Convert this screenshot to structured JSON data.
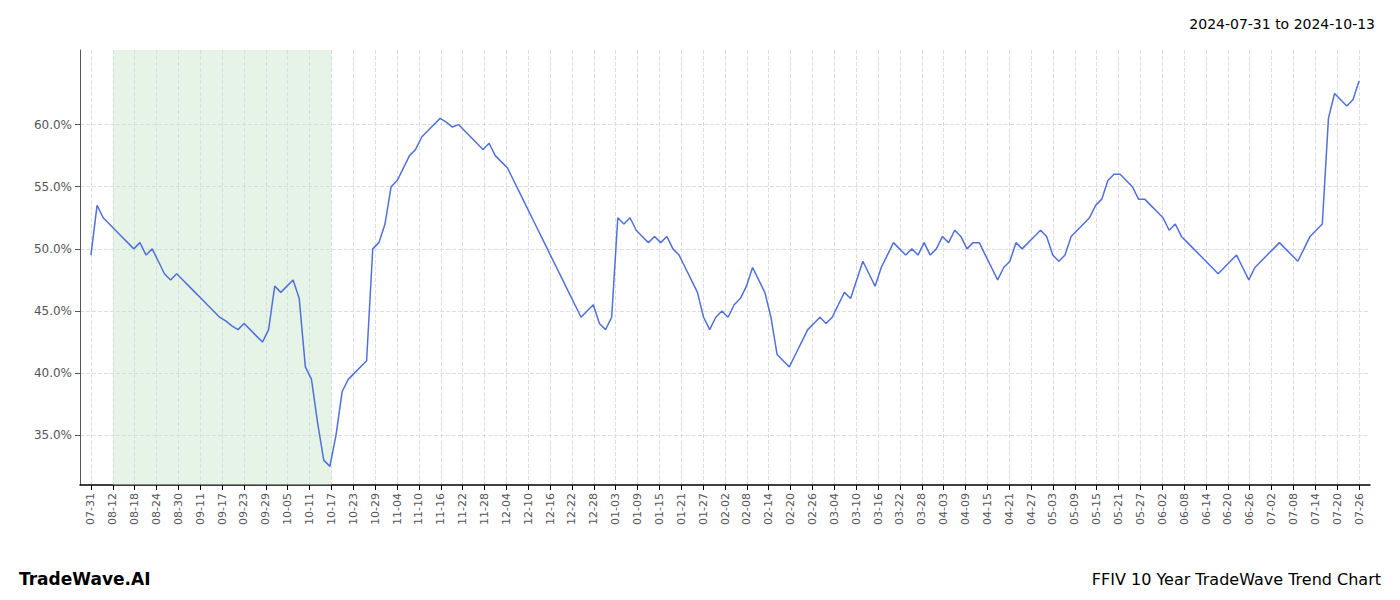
{
  "chart_data": {
    "type": "line",
    "title": "FFIV 10 Year TradeWave Trend Chart",
    "subtitle": "2024-07-31 to 2024-10-13",
    "annotation": "TradeWave.AI",
    "x": [
      0,
      0.2802,
      0.5604,
      0.8406,
      1.1208,
      1.401,
      1.6812,
      1.9614,
      2.2415,
      2.5217,
      2.8019,
      3.0821,
      3.3623,
      3.6425,
      3.9227,
      4.2029,
      4.4831,
      4.7633,
      5.0435,
      5.3237,
      5.6039,
      5.8841,
      6.1643,
      6.4444,
      6.7246,
      7.0048,
      7.285,
      7.5652,
      7.8454,
      8.1256,
      8.4058,
      8.686,
      8.9662,
      9.2464,
      9.5266,
      9.8068,
      10.087,
      10.3671,
      10.6473,
      10.9275,
      11.2077,
      11.4879,
      11.7681,
      12.0483,
      12.3285,
      12.6087,
      12.8889,
      13.1691,
      13.4493,
      13.7295,
      14.0097,
      14.2899,
      14.57,
      14.8502,
      15.1304,
      15.4106,
      15.6908,
      15.971,
      16.2512,
      16.5314,
      16.8116,
      17.0918,
      17.372,
      17.6522,
      17.9324,
      18.2126,
      18.4928,
      18.7729,
      19.0531,
      19.3333,
      19.6135,
      19.8937,
      20.1739,
      20.4541,
      20.7343,
      21.0145,
      21.2947,
      21.5749,
      21.8551,
      22.1353,
      22.4155,
      22.6957,
      22.9758,
      23.256,
      23.5362,
      23.8164,
      24.0966,
      24.3768,
      24.657,
      24.9372,
      25.2174,
      25.4976,
      25.7778,
      26.058,
      26.3382,
      26.6184,
      26.8986,
      27.1787,
      27.4589,
      27.7391,
      28.0193,
      28.2995,
      28.5797,
      28.8599,
      29.1401,
      29.4203,
      29.7005,
      29.9807,
      30.2609,
      30.5411,
      30.8213,
      31.1014,
      31.3816,
      31.6618,
      31.942,
      32.2222,
      32.5024,
      32.7826,
      33.0628,
      33.343,
      33.6232,
      33.9034,
      34.1836,
      34.4638,
      34.744,
      35.0242,
      35.3043,
      35.5845,
      35.8647,
      36.1449,
      36.4251,
      36.7053,
      36.9855,
      37.2657,
      37.5459,
      37.8261,
      38.1063,
      38.3865,
      38.6667,
      38.9469,
      39.2271,
      39.5072,
      39.7874,
      40.0676,
      40.3478,
      40.628,
      40.9082,
      41.1884,
      41.4686,
      41.7488,
      42.029,
      42.3092,
      42.5894,
      42.8696,
      43.1498,
      43.43,
      43.7101,
      43.9903,
      44.2705,
      44.5507,
      44.8309,
      45.1111,
      45.3913,
      45.6715,
      45.9517,
      46.2319,
      46.5121,
      46.7923,
      47.0725,
      47.3527,
      47.6329,
      47.913,
      48.1932,
      48.4734,
      48.7536,
      49.0338,
      49.314,
      49.5942,
      49.8744,
      50.1546,
      50.4348,
      50.715,
      50.9952,
      51.2754,
      51.5556,
      51.8357,
      52.1159,
      52.3961,
      52.6763,
      52.9565,
      53.2367,
      53.5169,
      53.7971,
      54.0773,
      54.3575,
      54.6377,
      54.9179,
      55.1981,
      55.4783,
      55.7585,
      56.0386,
      56.3188,
      56.599,
      56.8792,
      57.1594,
      57.4396,
      57.7198,
      58
    ],
    "values": [
      49.5,
      53.5,
      52.5,
      52.0,
      51.5,
      51.0,
      50.5,
      50.0,
      50.5,
      49.5,
      50.0,
      49.0,
      48.0,
      47.5,
      48.0,
      47.5,
      47.0,
      46.5,
      46.0,
      45.5,
      45.0,
      44.5,
      44.2,
      43.8,
      43.5,
      44.0,
      43.5,
      43.0,
      42.5,
      43.5,
      47.0,
      46.5,
      47.0,
      47.5,
      46.0,
      40.5,
      39.5,
      36.0,
      33.0,
      32.5,
      35.0,
      38.5,
      39.5,
      40.0,
      40.5,
      41.0,
      50.0,
      50.5,
      52.0,
      55.0,
      55.5,
      56.5,
      57.5,
      58.0,
      59.0,
      59.5,
      60.0,
      60.5,
      60.2,
      59.8,
      60.0,
      59.5,
      59.0,
      58.5,
      58.0,
      58.5,
      57.5,
      57.0,
      56.5,
      55.5,
      54.5,
      53.5,
      52.5,
      51.5,
      50.5,
      49.5,
      48.5,
      47.5,
      46.5,
      45.5,
      44.5,
      45.0,
      45.5,
      44.0,
      43.5,
      44.5,
      52.5,
      52.0,
      52.5,
      51.5,
      51.0,
      50.5,
      51.0,
      50.5,
      51.0,
      50.0,
      49.5,
      48.5,
      47.5,
      46.5,
      44.5,
      43.5,
      44.5,
      45.0,
      44.5,
      45.5,
      46.0,
      47.0,
      48.5,
      47.5,
      46.5,
      44.5,
      41.5,
      41.0,
      40.5,
      41.5,
      42.5,
      43.5,
      44.0,
      44.5,
      44.0,
      44.5,
      45.5,
      46.5,
      46.0,
      47.5,
      49.0,
      48.0,
      47.0,
      48.5,
      49.5,
      50.5,
      50.0,
      49.5,
      50.0,
      49.5,
      50.5,
      49.5,
      50.0,
      51.0,
      50.5,
      51.5,
      51.0,
      50.0,
      50.5,
      50.5,
      49.5,
      48.5,
      47.5,
      48.5,
      49.0,
      50.5,
      50.0,
      50.5,
      51.0,
      51.5,
      51.0,
      49.5,
      49.0,
      49.5,
      51.0,
      51.5,
      52.0,
      52.5,
      53.5,
      54.0,
      55.5,
      56.0,
      56.0,
      55.5,
      55.0,
      54.0,
      54.0,
      53.5,
      53.0,
      52.5,
      51.5,
      52.0,
      51.0,
      50.5,
      50.0,
      49.5,
      49.0,
      48.5,
      48.0,
      48.5,
      49.0,
      49.5,
      48.5,
      47.5,
      48.5,
      49.0,
      49.5,
      50.0,
      50.5,
      50.0,
      49.5,
      49.0,
      50.0,
      51.0,
      51.5,
      52.0,
      60.5,
      62.5,
      62.0,
      61.5,
      62.0,
      63.5
    ],
    "xlim": [
      -0.5,
      58.5
    ],
    "xticks": [
      {
        "value": 0,
        "label": "07-31"
      },
      {
        "value": 1,
        "label": "08-12"
      },
      {
        "value": 2,
        "label": "08-18"
      },
      {
        "value": 3,
        "label": "08-24"
      },
      {
        "value": 4,
        "label": "08-30"
      },
      {
        "value": 5,
        "label": "09-11"
      },
      {
        "value": 6,
        "label": "09-17"
      },
      {
        "value": 7,
        "label": "09-23"
      },
      {
        "value": 8,
        "label": "09-29"
      },
      {
        "value": 9,
        "label": "10-05"
      },
      {
        "value": 10,
        "label": "10-11"
      },
      {
        "value": 11,
        "label": "10-17"
      },
      {
        "value": 12,
        "label": "10-23"
      },
      {
        "value": 13,
        "label": "10-29"
      },
      {
        "value": 14,
        "label": "11-04"
      },
      {
        "value": 15,
        "label": "11-10"
      },
      {
        "value": 16,
        "label": "11-16"
      },
      {
        "value": 17,
        "label": "11-22"
      },
      {
        "value": 18,
        "label": "11-28"
      },
      {
        "value": 19,
        "label": "12-04"
      },
      {
        "value": 20,
        "label": "12-10"
      },
      {
        "value": 21,
        "label": "12-16"
      },
      {
        "value": 22,
        "label": "12-22"
      },
      {
        "value": 23,
        "label": "12-28"
      },
      {
        "value": 24,
        "label": "01-03"
      },
      {
        "value": 25,
        "label": "01-09"
      },
      {
        "value": 26,
        "label": "01-15"
      },
      {
        "value": 27,
        "label": "01-21"
      },
      {
        "value": 28,
        "label": "01-27"
      },
      {
        "value": 29,
        "label": "02-02"
      },
      {
        "value": 30,
        "label": "02-08"
      },
      {
        "value": 31,
        "label": "02-14"
      },
      {
        "value": 32,
        "label": "02-20"
      },
      {
        "value": 33,
        "label": "02-26"
      },
      {
        "value": 34,
        "label": "03-04"
      },
      {
        "value": 35,
        "label": "03-10"
      },
      {
        "value": 36,
        "label": "03-16"
      },
      {
        "value": 37,
        "label": "03-22"
      },
      {
        "value": 38,
        "label": "03-28"
      },
      {
        "value": 39,
        "label": "04-03"
      },
      {
        "value": 40,
        "label": "04-09"
      },
      {
        "value": 41,
        "label": "04-15"
      },
      {
        "value": 42,
        "label": "04-21"
      },
      {
        "value": 43,
        "label": "04-27"
      },
      {
        "value": 44,
        "label": "05-03"
      },
      {
        "value": 45,
        "label": "05-09"
      },
      {
        "value": 46,
        "label": "05-15"
      },
      {
        "value": 47,
        "label": "05-21"
      },
      {
        "value": 48,
        "label": "05-27"
      },
      {
        "value": 49,
        "label": "06-02"
      },
      {
        "value": 50,
        "label": "06-08"
      },
      {
        "value": 51,
        "label": "06-14"
      },
      {
        "value": 52,
        "label": "06-20"
      },
      {
        "value": 53,
        "label": "06-26"
      },
      {
        "value": 54,
        "label": "07-02"
      },
      {
        "value": 55,
        "label": "07-08"
      },
      {
        "value": 56,
        "label": "07-14"
      },
      {
        "value": 57,
        "label": "07-20"
      },
      {
        "value": 58,
        "label": "07-26"
      }
    ],
    "ylim": [
      31,
      66
    ],
    "yticks": [
      {
        "value": 35.0,
        "label": "35.0%"
      },
      {
        "value": 40.0,
        "label": "40.0%"
      },
      {
        "value": 45.0,
        "label": "45.0%"
      },
      {
        "value": 50.0,
        "label": "50.0%"
      },
      {
        "value": 55.0,
        "label": "55.0%"
      },
      {
        "value": 60.0,
        "label": "60.0%"
      }
    ],
    "grid": true,
    "shaded_span": {
      "from": "08-12",
      "to": "10-17",
      "color": "#c8e6c9"
    }
  }
}
